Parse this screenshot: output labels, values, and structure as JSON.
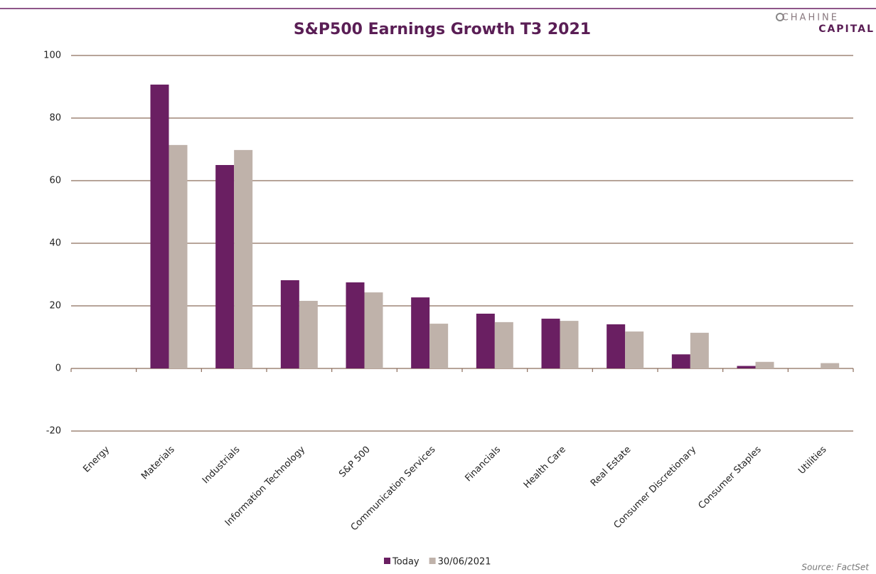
{
  "chart_data": {
    "type": "bar",
    "title": "S&P500 Earnings Growth T3 2021",
    "logo": [
      "CHAHINE",
      "CAPITAL"
    ],
    "source": "Source: FactSet",
    "categories": [
      "Energy",
      "Materials",
      "Industrials",
      "Information Technology",
      "S&P 500",
      "Communication Services",
      "Financials",
      "Health Care",
      "Real Estate",
      "Consumer Discretionary",
      "Consumer Staples",
      "Utilities"
    ],
    "series": [
      {
        "name": "Today",
        "color": "#6a1f62",
        "values": [
          null,
          90.7,
          65,
          28.2,
          27.5,
          22.7,
          17.5,
          15.9,
          14.1,
          4.5,
          0.8,
          0
        ]
      },
      {
        "name": "30/06/2021",
        "color": "#bfb2aa",
        "values": [
          null,
          71.4,
          69.8,
          21.6,
          24.3,
          14.3,
          14.8,
          15.2,
          11.8,
          11.4,
          2.1,
          1.7
        ]
      }
    ],
    "ylim": [
      -20,
      100
    ],
    "yticks": [
      -20,
      0,
      20,
      40,
      60,
      80,
      100
    ],
    "grid": true,
    "legend": "bottom"
  }
}
